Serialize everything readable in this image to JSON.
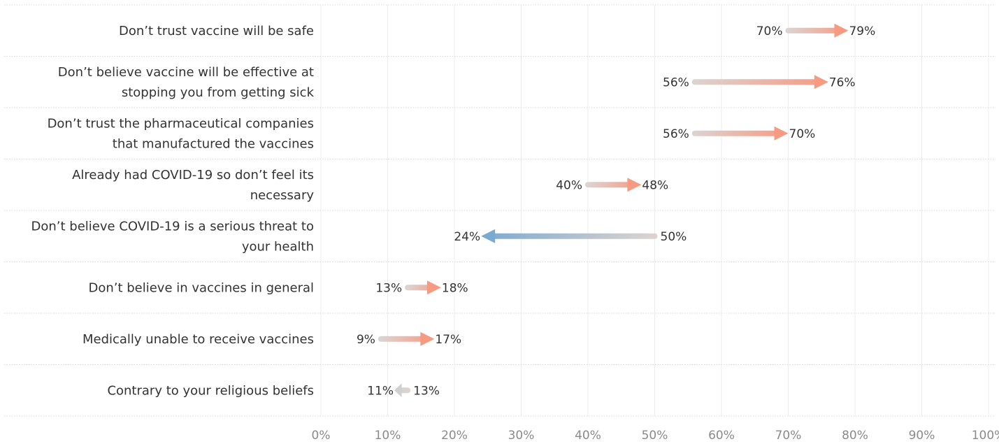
{
  "chart_data": {
    "type": "arrow",
    "title": "",
    "xlabel": "",
    "ylabel": "",
    "xlim": [
      0,
      100
    ],
    "x_ticks": [
      "0%",
      "10%",
      "20%",
      "30%",
      "40%",
      "50%",
      "60%",
      "70%",
      "80%",
      "90%",
      "100%"
    ],
    "grid": true,
    "rows": [
      {
        "label": [
          "Don’t trust vaccine will be safe"
        ],
        "from": 70,
        "to": 79,
        "from_label": "70%",
        "to_label": "79%"
      },
      {
        "label": [
          "Don’t believe vaccine will be effective at",
          "stopping you from getting sick"
        ],
        "from": 56,
        "to": 76,
        "from_label": "56%",
        "to_label": "76%"
      },
      {
        "label": [
          "Don’t trust the pharmaceutical companies",
          "that manufactured the vaccines"
        ],
        "from": 56,
        "to": 70,
        "from_label": "56%",
        "to_label": "70%"
      },
      {
        "label": [
          "Already had COVID-19 so don’t feel its",
          "necessary"
        ],
        "from": 40,
        "to": 48,
        "from_label": "40%",
        "to_label": "48%"
      },
      {
        "label": [
          "Don’t believe COVID-19 is a serious threat to",
          "your health"
        ],
        "from": 50,
        "to": 24,
        "from_label": "50%",
        "to_label": "24%"
      },
      {
        "label": [
          "Don’t believe in vaccines in general"
        ],
        "from": 13,
        "to": 18,
        "from_label": "13%",
        "to_label": "18%"
      },
      {
        "label": [
          "Medically unable to receive vaccines"
        ],
        "from": 9,
        "to": 17,
        "from_label": "9%",
        "to_label": "17%"
      },
      {
        "label": [
          "Contrary to your religious beliefs"
        ],
        "from": 13,
        "to": 11,
        "from_label": "13%",
        "to_label": "11%"
      }
    ],
    "colors": {
      "start": "#dcd3d0",
      "increase": "#f79a82",
      "decrease": "#7baad1",
      "neutral": "#d0d0d0",
      "grid": "#ececec",
      "separator": "#d8d8d8",
      "text": "#333333",
      "tick_text": "#8a8a8a"
    }
  }
}
